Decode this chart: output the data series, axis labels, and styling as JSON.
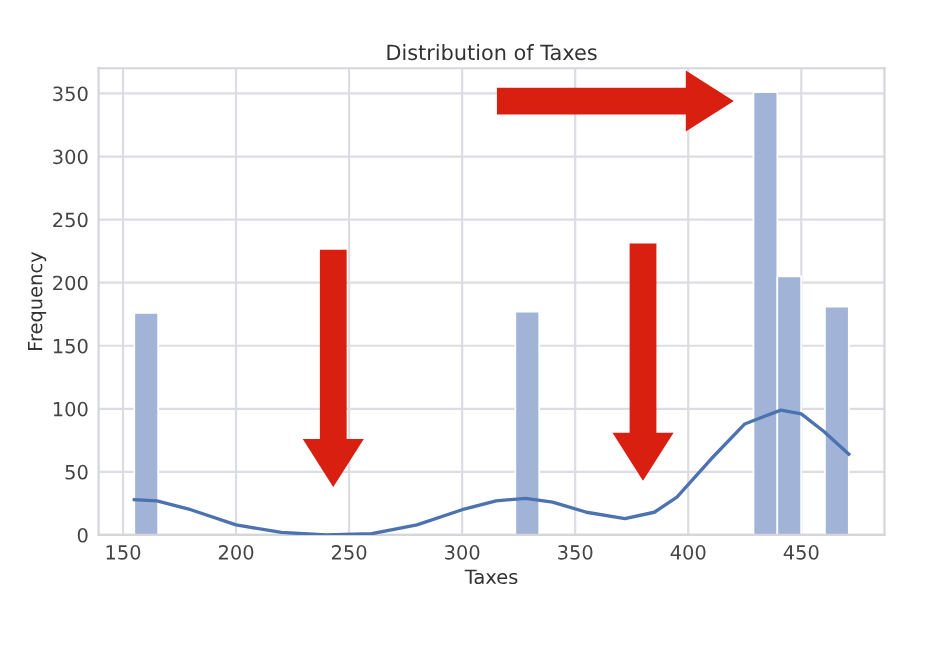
{
  "chart_data": {
    "type": "histogram",
    "title": "Distribution of Taxes",
    "xlabel": "Taxes",
    "ylabel": "Frequency",
    "bins": [
      155,
      165.53,
      176.07,
      186.6,
      197.13,
      207.67,
      218.2,
      228.73,
      239.27,
      249.8,
      260.33,
      270.87,
      281.4,
      291.93,
      302.47,
      313,
      323.53,
      334.07,
      344.6,
      355.13,
      365.67,
      376.2,
      386.73,
      397.27,
      407.8,
      418.33,
      428.87,
      439.4,
      449.93,
      460.47,
      471
    ],
    "values": [
      176,
      0,
      0,
      0,
      0,
      0,
      0,
      0,
      0,
      0,
      0,
      0,
      0,
      0,
      0,
      0,
      177,
      0,
      0,
      0,
      0,
      0,
      0,
      0,
      0,
      0,
      351,
      205,
      0,
      181
    ],
    "color": "#a1b4d8",
    "series": [
      {
        "type": "line",
        "color": "#4c72b0",
        "x": [
          155,
          165,
          180,
          200,
          220,
          240,
          260,
          280,
          300,
          315,
          328,
          340,
          355,
          372,
          385,
          395,
          410,
          425,
          441,
          450,
          460,
          471
        ],
        "values": [
          28,
          27,
          20,
          8,
          2,
          0,
          1,
          8,
          20,
          27,
          29,
          26,
          18,
          13,
          18,
          30,
          60,
          88,
          99,
          96,
          82,
          64
        ]
      }
    ],
    "xlim": [
      139.2,
      486.8
    ],
    "xticks": [
      150,
      200,
      250,
      300,
      350,
      400,
      450
    ],
    "ylim": [
      0,
      370
    ],
    "yticks": [
      0,
      50,
      100,
      150,
      200,
      250,
      300,
      350
    ],
    "grid": true
  }
}
